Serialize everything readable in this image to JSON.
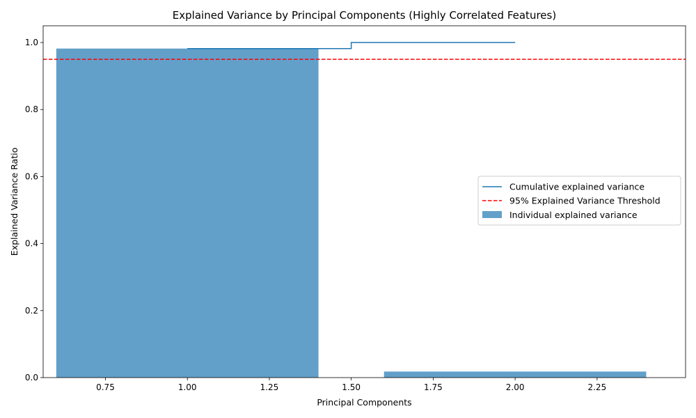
{
  "chart_data": {
    "type": "bar",
    "title": "Explained Variance by Principal Components (Highly Correlated Features)",
    "xlabel": "Principal Components",
    "ylabel": "Explained Variance Ratio",
    "xlim": [
      0.56,
      2.52
    ],
    "ylim": [
      0.0,
      1.05
    ],
    "xticks": [
      "0.75",
      "1.00",
      "1.25",
      "1.50",
      "1.75",
      "2.00",
      "2.25"
    ],
    "yticks": [
      "0.0",
      "0.2",
      "0.4",
      "0.6",
      "0.8",
      "1.0"
    ],
    "grid": false,
    "legend_position": "center-right",
    "bars": {
      "name": "Individual explained variance",
      "x": [
        1,
        2
      ],
      "width": 0.8,
      "values": [
        0.982,
        0.018
      ],
      "color": "#1f77b4",
      "alpha": 0.7
    },
    "cumulative": {
      "name": "Cumulative explained variance",
      "x": [
        1,
        2
      ],
      "values": [
        0.982,
        1.0
      ],
      "drawstyle": "steps-mid",
      "color": "#1f77b4"
    },
    "threshold": {
      "name": "95% Explained Variance Threshold",
      "value": 0.95,
      "color": "#ff0000",
      "style": "dashed"
    }
  }
}
